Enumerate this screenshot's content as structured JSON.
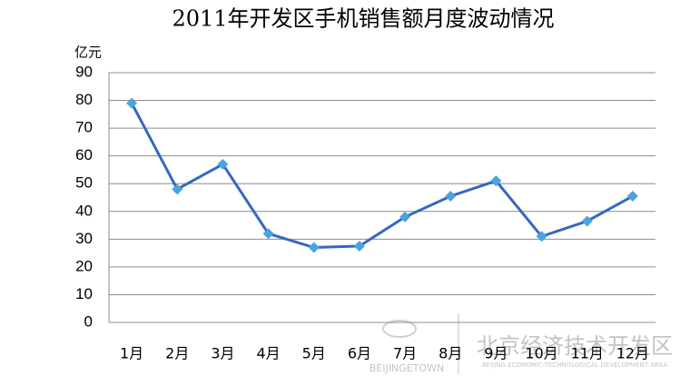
{
  "chart_data": {
    "type": "line",
    "title": "2011年开发区手机销售额月度波动情况",
    "y_label": "亿元",
    "categories": [
      "1月",
      "2月",
      "3月",
      "4月",
      "5月",
      "6月",
      "7月",
      "8月",
      "9月",
      "10月",
      "11月",
      "12月"
    ],
    "series": [
      {
        "name": "手机销售额",
        "color": "#3568c0",
        "marker_color": "#4aa3dc",
        "values": [
          79,
          48,
          57,
          32,
          27,
          27.5,
          38,
          45.5,
          51,
          31,
          36.5,
          45.5
        ]
      }
    ],
    "ylim": [
      0,
      90
    ],
    "yticks": [
      0,
      10,
      20,
      30,
      40,
      50,
      60,
      70,
      80,
      90
    ],
    "grid": true,
    "legend": false
  },
  "watermark": {
    "cn": "北京经济技术开发区",
    "en": "BEIJINGETOWN",
    "en_full": "BEIJING ECONOMIC-TECHNOLOGICAL DEVELOPMENT AREA"
  }
}
